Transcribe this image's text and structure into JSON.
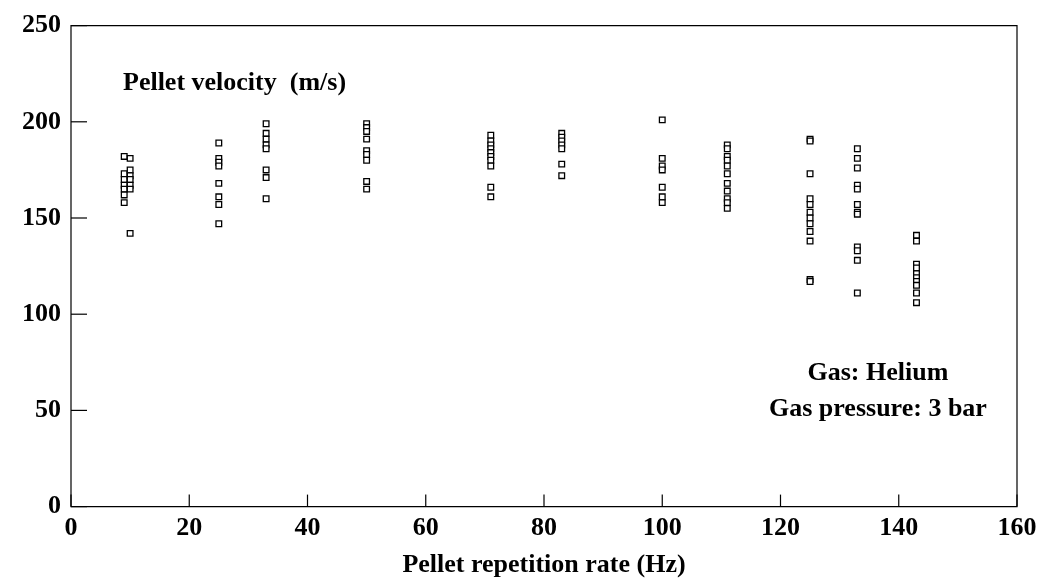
{
  "chart_data": {
    "type": "scatter",
    "xlabel": "Pellet repetition rate (Hz)",
    "ylabel": "Pellet velocity  (m/s)",
    "annotations": [
      "Gas: Helium",
      "Gas pressure: 3 bar"
    ],
    "xlim": [
      0,
      160
    ],
    "xticks": [
      0,
      20,
      40,
      60,
      80,
      100,
      120,
      140,
      160
    ],
    "ylim": [
      0,
      250
    ],
    "yticks": [
      0,
      50,
      100,
      150,
      200,
      250
    ],
    "grid": false,
    "legend": false,
    "marker": "square",
    "series": [
      {
        "color": "#000000",
        "x": [
          9,
          9,
          9,
          9,
          9,
          9,
          9,
          10,
          10,
          10,
          10,
          10,
          10,
          10,
          25,
          25,
          25,
          25,
          25,
          25,
          25,
          25,
          33,
          33,
          33,
          33,
          33,
          33,
          33,
          33,
          50,
          50,
          50,
          50,
          50,
          50,
          50,
          50,
          50,
          71,
          71,
          71,
          71,
          71,
          71,
          71,
          71,
          71,
          71,
          83,
          83,
          83,
          83,
          83,
          83,
          83,
          100,
          100,
          100,
          100,
          100,
          100,
          100,
          111,
          111,
          111,
          111,
          111,
          111,
          111,
          111,
          111,
          111,
          111,
          125,
          125,
          125,
          125,
          125,
          125,
          125,
          125,
          125,
          125,
          125,
          125,
          133,
          133,
          133,
          133,
          133,
          133,
          133,
          133,
          133,
          133,
          133,
          133,
          143,
          143,
          143,
          143,
          143,
          143,
          143,
          143,
          143,
          143
        ],
        "values": [
          182,
          173,
          170,
          167,
          165,
          162,
          158,
          181,
          175,
          172,
          170,
          167,
          165,
          142,
          189,
          181,
          179,
          177,
          168,
          161,
          157,
          147,
          199,
          194,
          191,
          188,
          186,
          175,
          171,
          160,
          199,
          197,
          195,
          191,
          185,
          183,
          180,
          169,
          165,
          193,
          190,
          188,
          186,
          184,
          182,
          180,
          177,
          166,
          161,
          194,
          192,
          190,
          188,
          186,
          178,
          172,
          201,
          181,
          177,
          175,
          166,
          161,
          158,
          188,
          186,
          182,
          180,
          177,
          173,
          168,
          164,
          160,
          158,
          155,
          191,
          190,
          173,
          160,
          157,
          153,
          150,
          147,
          143,
          138,
          118,
          117,
          186,
          181,
          176,
          167,
          165,
          157,
          153,
          152,
          135,
          133,
          128,
          111,
          141,
          138,
          126,
          124,
          121,
          119,
          117,
          115,
          111,
          106
        ]
      }
    ]
  }
}
